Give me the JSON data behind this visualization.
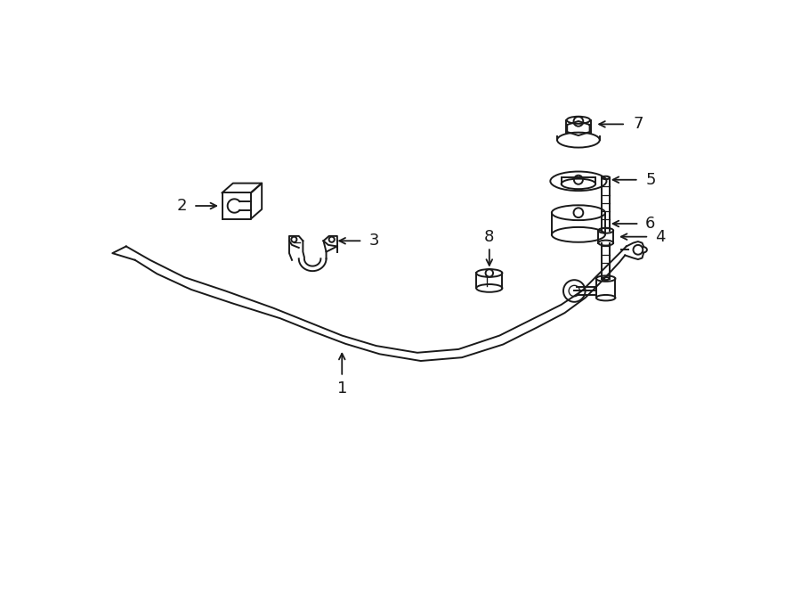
{
  "bg_color": "#ffffff",
  "line_color": "#1a1a1a",
  "figsize": [
    9.0,
    6.61
  ],
  "dpi": 100,
  "xlim": [
    0,
    9
  ],
  "ylim": [
    0,
    6.61
  ]
}
